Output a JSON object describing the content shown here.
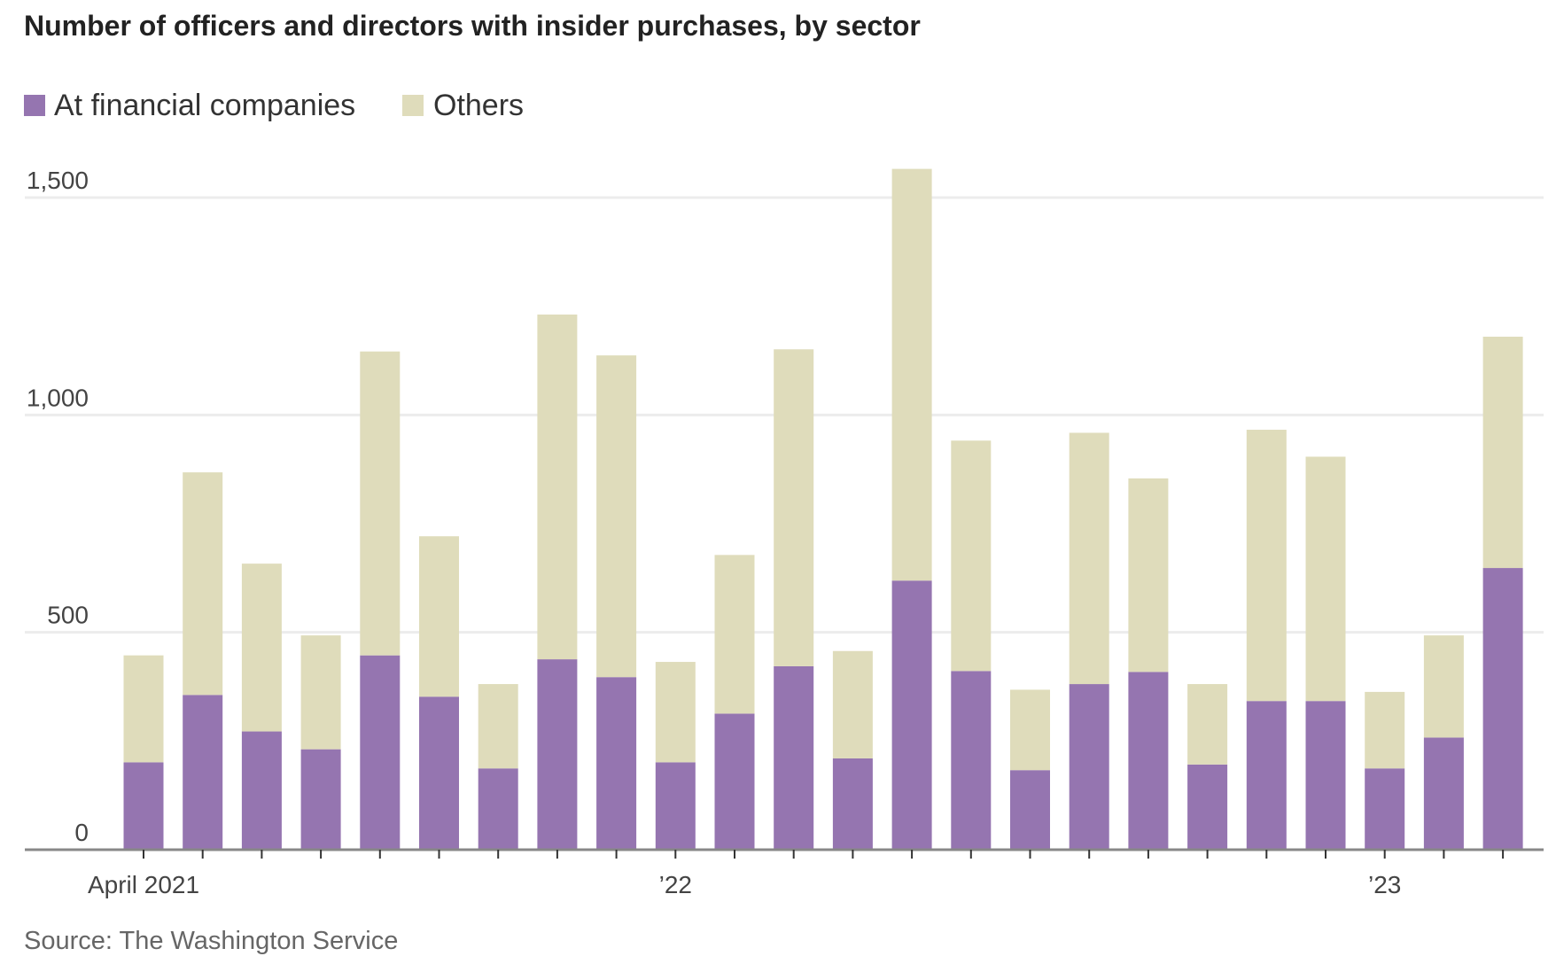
{
  "chart_data": {
    "type": "bar",
    "stacked": true,
    "title": "Number of officers and directors with insider purchases, by sector",
    "source": "Source: The Washington Service",
    "xlabel": "",
    "ylabel": "",
    "ylim": [
      0,
      1600
    ],
    "yticks": [
      0,
      500,
      1000,
      1500
    ],
    "ytick_labels": [
      "0",
      "500",
      "1,000",
      "1,500"
    ],
    "xtick_labels": [
      {
        "index": 0,
        "label": "April 2021"
      },
      {
        "index": 9,
        "label": "’22"
      },
      {
        "index": 21,
        "label": "’23"
      }
    ],
    "grid": true,
    "legend_position": "top-left",
    "categories": [
      "2021-04",
      "2021-05",
      "2021-06",
      "2021-07",
      "2021-08",
      "2021-09",
      "2021-10",
      "2021-11",
      "2021-12",
      "2022-01",
      "2022-02",
      "2022-03",
      "2022-04",
      "2022-05",
      "2022-06",
      "2022-07",
      "2022-08",
      "2022-09",
      "2022-10",
      "2022-11",
      "2022-12",
      "2023-01",
      "2023-02",
      "2023-03"
    ],
    "series": [
      {
        "name": "At financial companies",
        "color": "#9575b0",
        "values": [
          201,
          356,
          272,
          231,
          447,
          352,
          187,
          438,
          397,
          201,
          313,
          422,
          210,
          619,
          411,
          183,
          381,
          409,
          196,
          342,
          342,
          187,
          258,
          648
        ]
      },
      {
        "name": "Others",
        "color": "#dfdcbb",
        "values": [
          246,
          512,
          386,
          262,
          699,
          369,
          194,
          793,
          740,
          231,
          365,
          729,
          247,
          947,
          530,
          185,
          578,
          445,
          185,
          624,
          562,
          176,
          235,
          532
        ]
      }
    ]
  }
}
